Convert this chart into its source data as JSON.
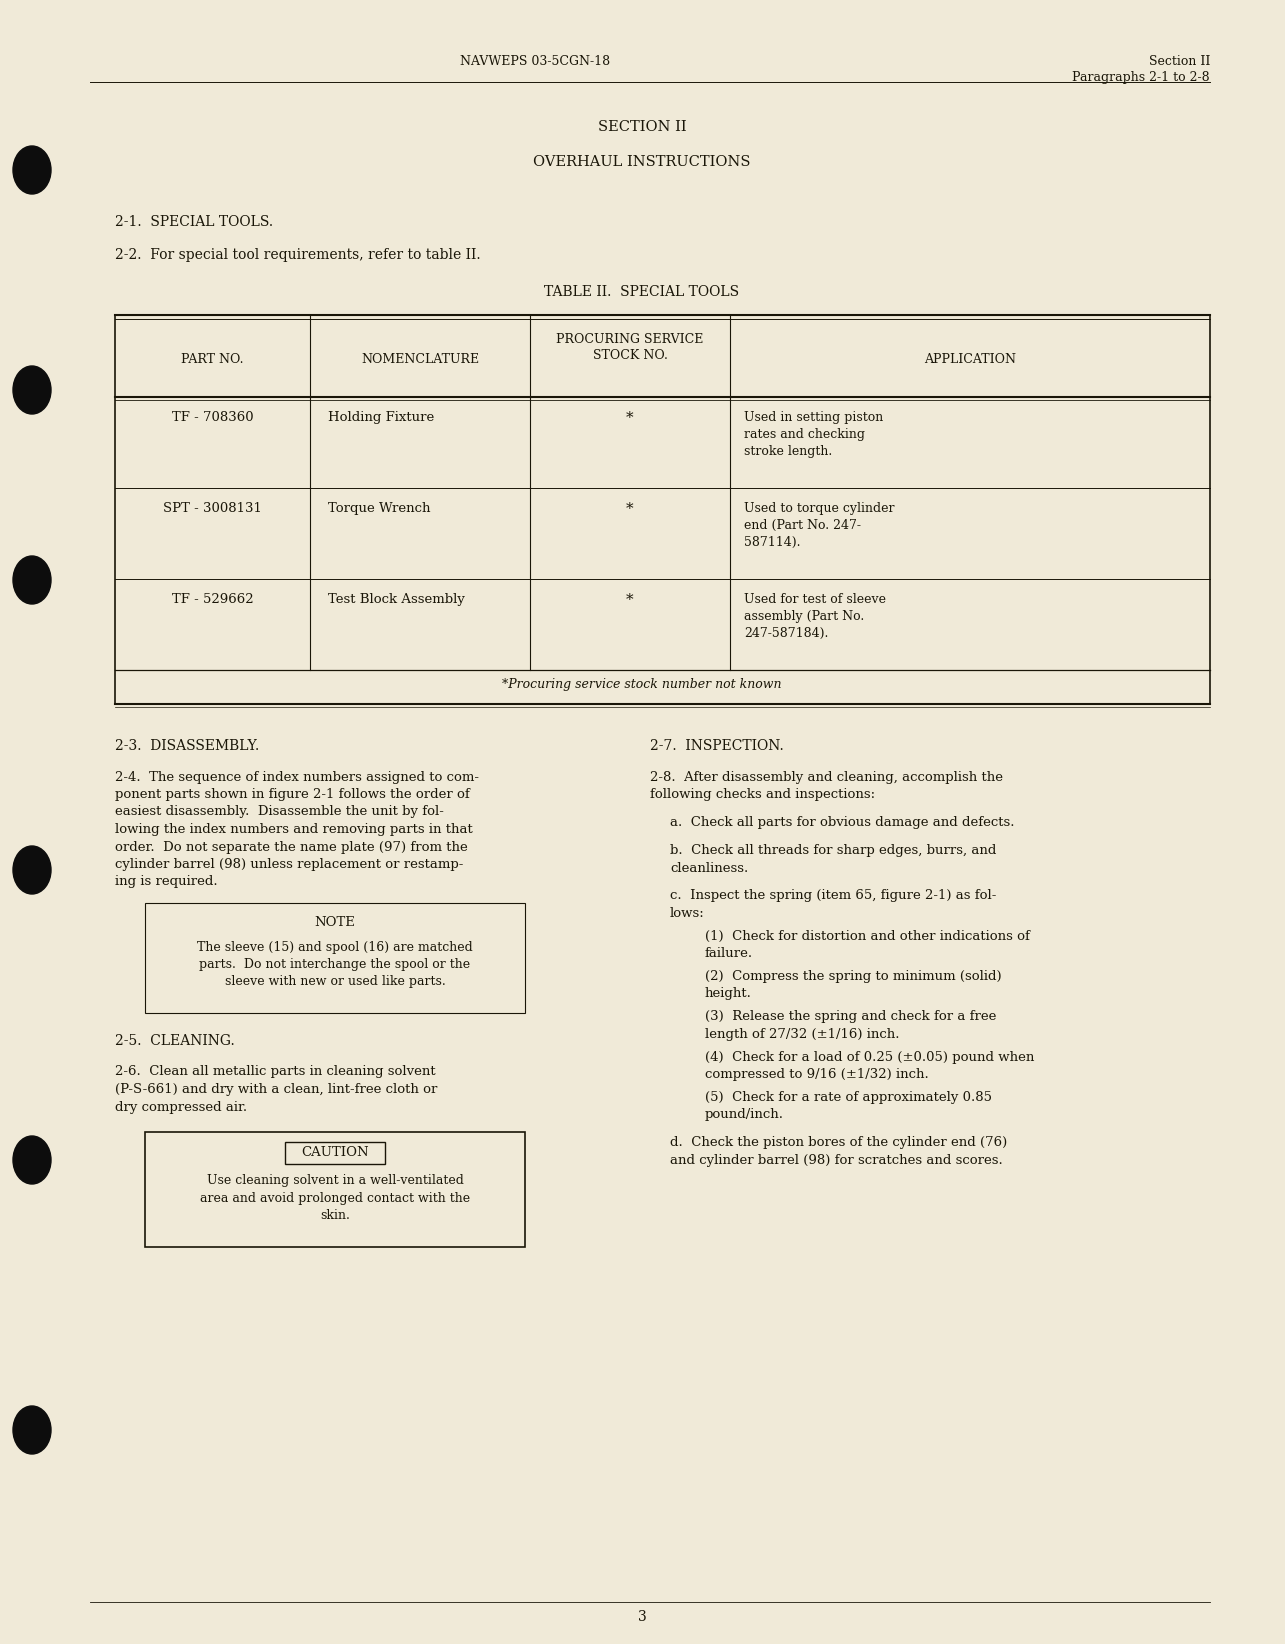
{
  "bg_color": "#f0ead8",
  "text_color": "#1a1608",
  "header_left": "NAVWEPS 03-5CGN-18",
  "header_right_line1": "Section II",
  "header_right_line2": "Paragraphs 2-1 to 2-8",
  "section_title": "SECTION II",
  "section_subtitle": "OVERHAUL INSTRUCTIONS",
  "para_2_1": "2-1.  SPECIAL TOOLS.",
  "para_2_2": "2-2.  For special tool requirements, refer to table II.",
  "table_title": "TABLE II.  SPECIAL TOOLS",
  "table_col_headers": [
    "PART NO.",
    "NOMENCLATURE",
    "PROCURING SERVICE\nSTOCK NO.",
    "APPLICATION"
  ],
  "table_rows": [
    [
      "TF - 708360",
      "Holding Fixture",
      "*",
      "Used in setting piston\nrates and checking\nstroke length."
    ],
    [
      "SPT - 3008131",
      "Torque Wrench",
      "*",
      "Used to torque cylinder\nend (Part No. 247-\n587114)."
    ],
    [
      "TF - 529662",
      "Test Block Assembly",
      "*",
      "Used for test of sleeve\nassembly (Part No.\n247-587184)."
    ]
  ],
  "table_footnote": "*Procuring service stock number not known",
  "para_2_3_title": "2-3.  DISASSEMBLY.",
  "para_2_4_lines": [
    "2-4.  The sequence of index numbers assigned to com-",
    "ponent parts shown in figure 2-1 follows the order of",
    "easiest disassembly.  Disassemble the unit by fol-",
    "lowing the index numbers and removing parts in that",
    "order.  Do not separate the name plate (97) from the",
    "cylinder barrel (98) unless replacement or restamp-",
    "ing is required."
  ],
  "note_label": "NOTE",
  "note_lines": [
    "The sleeve (15) and spool (16) are matched",
    "parts.  Do not interchange the spool or the",
    "sleeve with new or used like parts."
  ],
  "para_2_5_title": "2-5.  CLEANING.",
  "para_2_6_lines": [
    "2-6.  Clean all metallic parts in cleaning solvent",
    "(P-S-661) and dry with a clean, lint-free cloth or",
    "dry compressed air."
  ],
  "caution_label": "CAUTION",
  "caution_lines": [
    "Use cleaning solvent in a well-ventilated",
    "area and avoid prolonged contact with the",
    "skin."
  ],
  "para_2_7_title": "2-7.  INSPECTION.",
  "para_2_8_intro_lines": [
    "2-8.  After disassembly and cleaning, accomplish the",
    "following checks and inspections:"
  ],
  "para_2_8_a": "a.  Check all parts for obvious damage and defects.",
  "para_2_8_b_lines": [
    "b.  Check all threads for sharp edges, burrs, and",
    "cleanliness."
  ],
  "para_2_8_c_intro_lines": [
    "c.  Inspect the spring (item 65, figure 2-1) as fol-",
    "lows:"
  ],
  "para_2_8_c_items": [
    [
      "(1)  Check for distortion and other indications of",
      "failure."
    ],
    [
      "(2)  Compress the spring to minimum (solid)",
      "height."
    ],
    [
      "(3)  Release the spring and check for a free",
      "length of 27/32 (±1/16) inch."
    ],
    [
      "(4)  Check for a load of 0.25 (±0.05) pound when",
      "compressed to 9/16 (±1/32) inch."
    ],
    [
      "(5)  Check for a rate of approximately 0.85",
      "pound/inch."
    ]
  ],
  "para_2_8_d_lines": [
    "d.  Check the piston bores of the cylinder end (76)",
    "and cylinder barrel (98) for scratches and scores."
  ],
  "page_number": "3"
}
